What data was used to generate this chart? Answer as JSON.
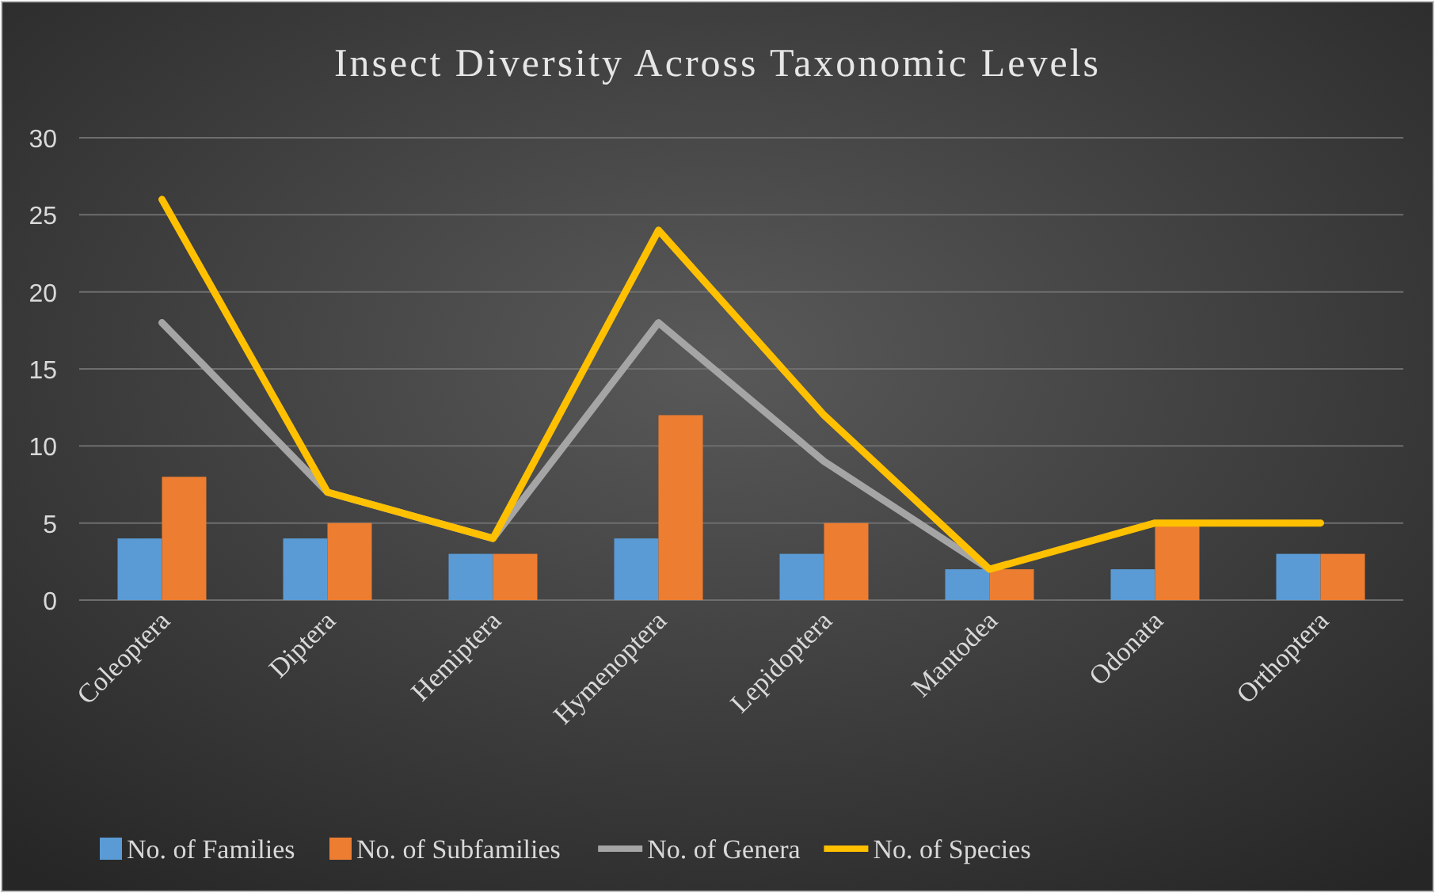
{
  "chart_data": {
    "type": "bar",
    "title": "Insect Diversity Across Taxonomic Levels",
    "categories": [
      "Coleoptera",
      "Diptera",
      "Hemiptera",
      "Hymenoptera",
      "Lepidoptera",
      "Mantodea",
      "Odonata",
      "Orthoptera"
    ],
    "series": [
      {
        "name": "No. of Families",
        "color": "#5b9bd5",
        "values": [
          4,
          4,
          3,
          4,
          3,
          2,
          2,
          3
        ]
      },
      {
        "name": "No. of Subfamilies",
        "color": "#ed7d31",
        "values": [
          8,
          5,
          3,
          12,
          5,
          2,
          5,
          3
        ]
      },
      {
        "name": "No. of Genera",
        "type": "line",
        "color": "#a5a5a5",
        "values": [
          18,
          7,
          4,
          18,
          9,
          2,
          null,
          null
        ]
      },
      {
        "name": "No. of Species",
        "type": "line",
        "color": "#ffc000",
        "values": [
          26,
          7,
          4,
          24,
          12,
          2,
          5,
          5
        ]
      }
    ],
    "ylim": [
      0,
      30
    ],
    "yticks": [
      0,
      5,
      10,
      15,
      20,
      25,
      30
    ],
    "grid": "y",
    "legend": "bottom",
    "marker": "none",
    "line_style": "solid"
  }
}
